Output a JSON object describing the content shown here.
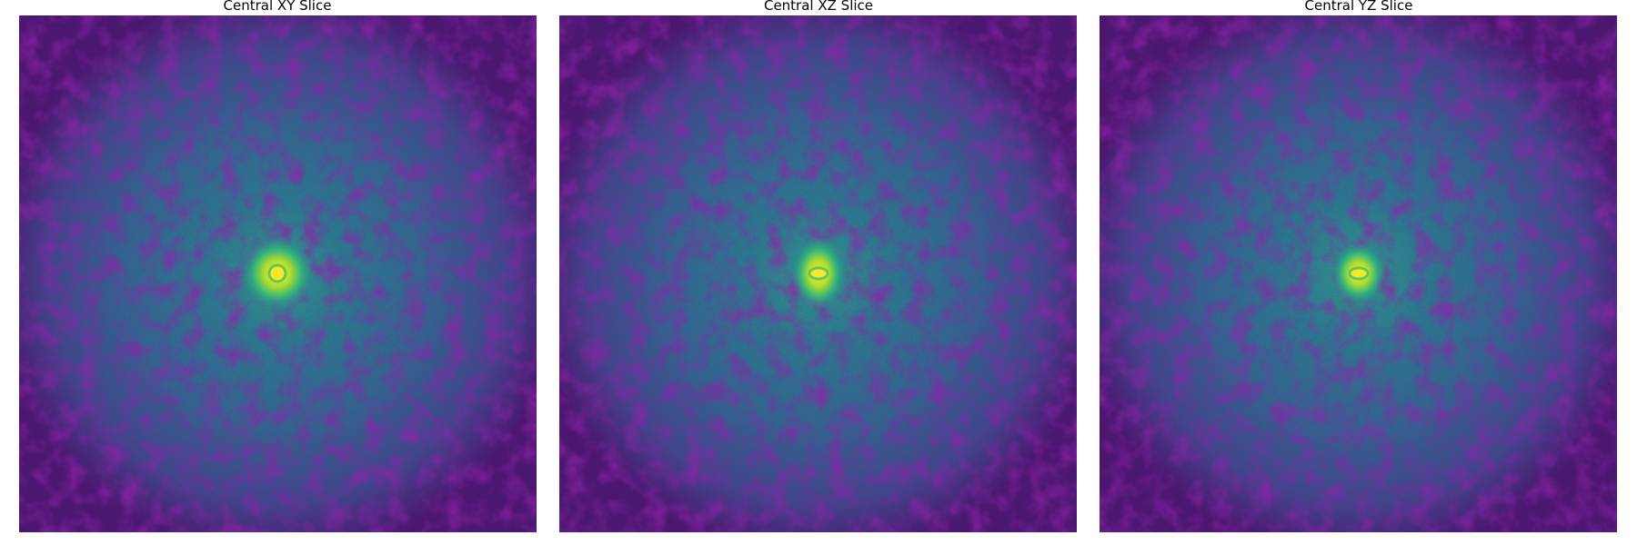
{
  "panels": [
    {
      "title": "Central XY Slice"
    },
    {
      "title": "Central XZ Slice"
    },
    {
      "title": "Central YZ Slice"
    }
  ]
}
